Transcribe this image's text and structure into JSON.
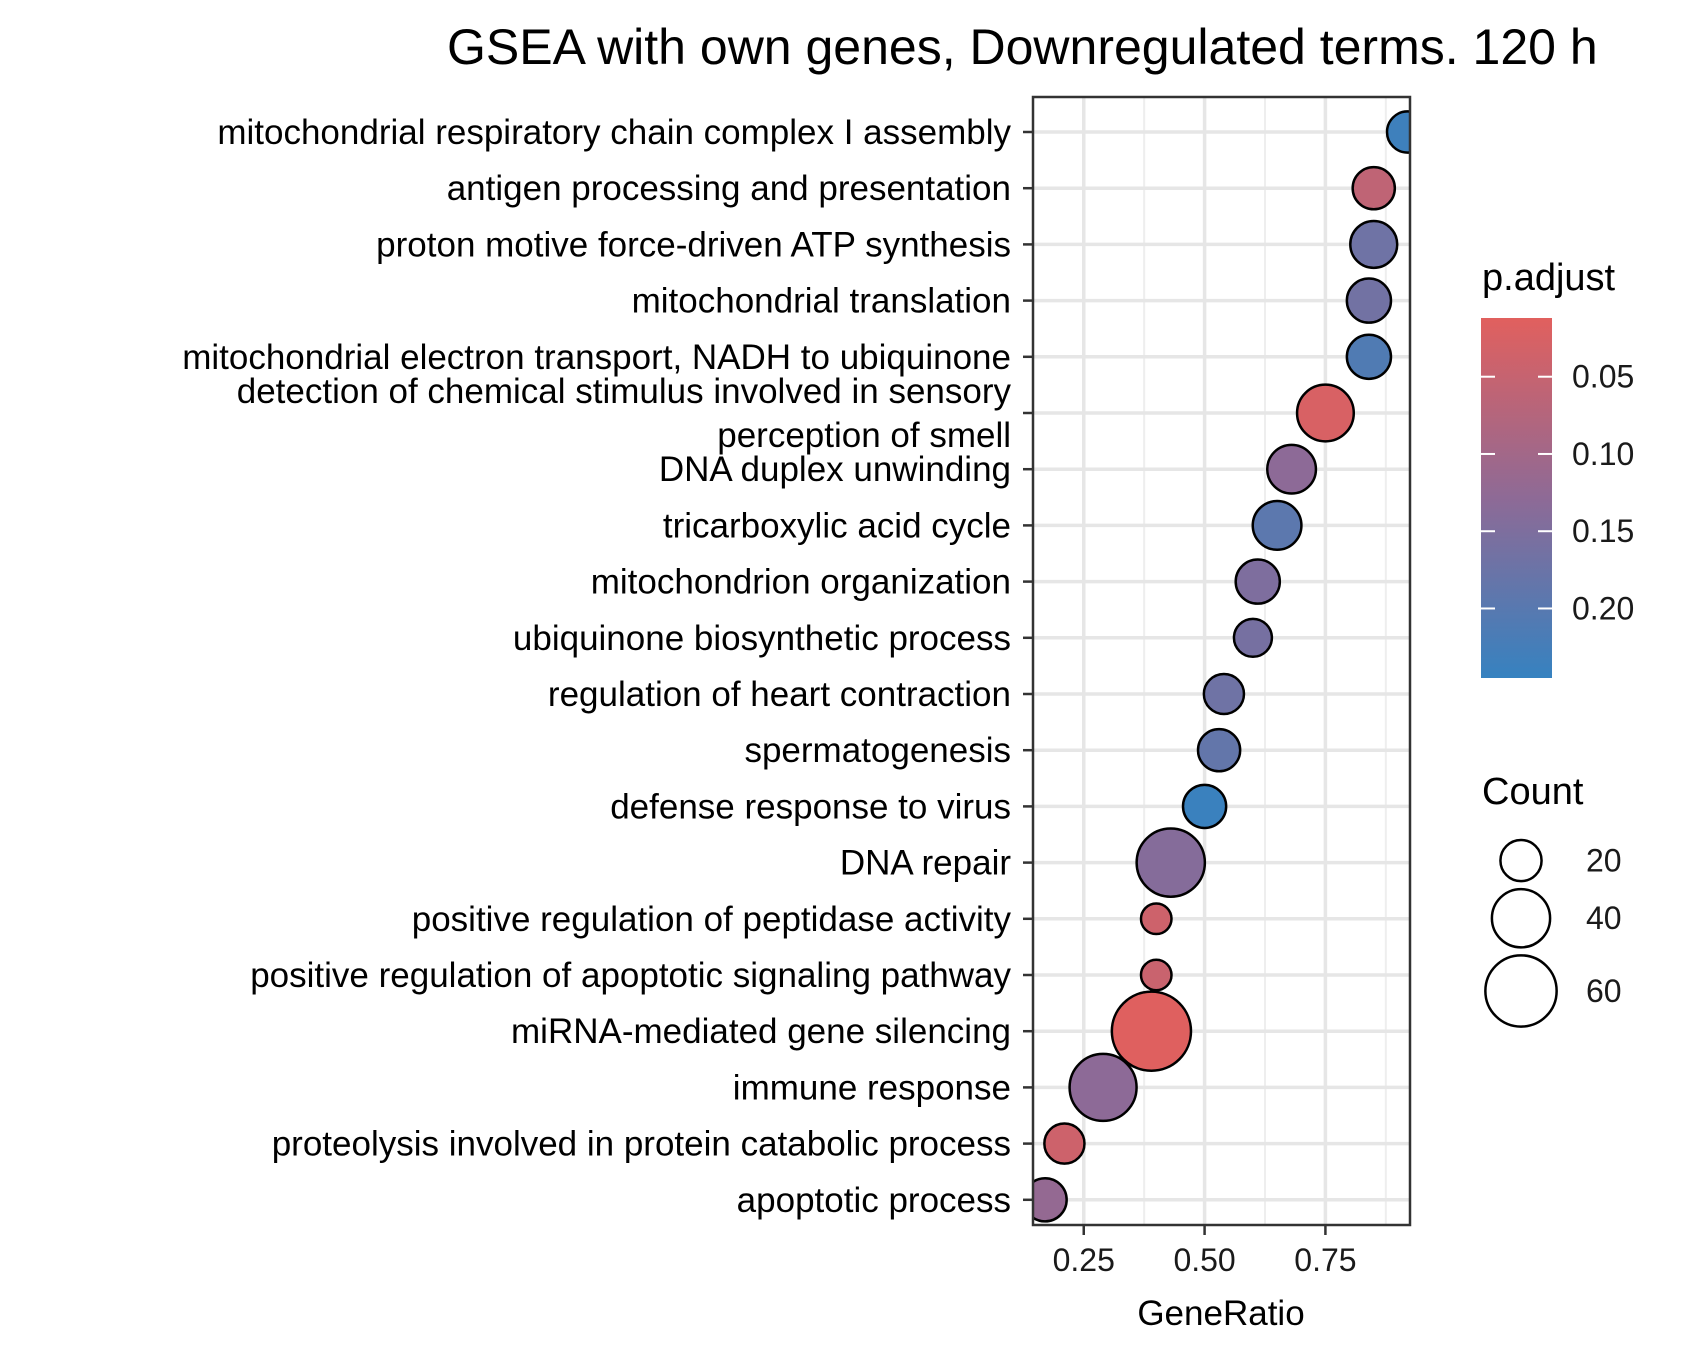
{
  "chart_data": {
    "type": "scatter",
    "title": "GSEA with own genes, Downregulated terms. 120 h",
    "xlabel": "GeneRatio",
    "ylabel": "",
    "xlim": [
      0.145,
      0.925
    ],
    "xticks": [
      0.25,
      0.5,
      0.75
    ],
    "xtick_labels": [
      "0.25",
      "0.50",
      "0.75"
    ],
    "grid": true,
    "legend_placement": "right",
    "color_scale": {
      "title": "p.adjust",
      "min_color": "#e1605e",
      "mid_color": "#8e6a96",
      "max_color": "#3682c0",
      "ticks": [
        0.05,
        0.1,
        0.15,
        0.2
      ],
      "tick_labels": [
        "0.05",
        "0.10",
        "0.15",
        "0.20"
      ],
      "range": [
        0.012,
        0.245
      ]
    },
    "size_scale": {
      "title": "Count",
      "ticks": [
        20,
        40,
        60
      ],
      "tick_labels": [
        "20",
        "40",
        "60"
      ]
    },
    "categories": [
      "mitochondrial respiratory chain complex I assembly",
      "antigen processing and presentation",
      "proton motive force-driven ATP synthesis",
      "mitochondrial translation",
      "mitochondrial electron transport, NADH to ubiquinone",
      "detection of chemical stimulus involved in sensory\nperception of smell",
      "DNA duplex unwinding",
      "tricarboxylic acid cycle",
      "mitochondrion organization",
      "ubiquinone biosynthetic process",
      "regulation of heart contraction",
      "spermatogenesis",
      "defense response to virus",
      "DNA repair",
      "positive regulation of peptidase activity",
      "positive regulation of apoptotic signaling pathway",
      "miRNA-mediated gene silencing",
      "immune response",
      "proteolysis involved in protein catabolic process",
      "apoptotic process"
    ],
    "points": [
      {
        "term": "mitochondrial respiratory chain complex I assembly",
        "GeneRatio": 0.92,
        "Count": 20,
        "p_adjust": 0.235
      },
      {
        "term": "antigen processing and presentation",
        "GeneRatio": 0.85,
        "Count": 21,
        "p_adjust": 0.06
      },
      {
        "term": "proton motive force-driven ATP synthesis",
        "GeneRatio": 0.85,
        "Count": 26,
        "p_adjust": 0.17
      },
      {
        "term": "mitochondrial translation",
        "GeneRatio": 0.84,
        "Count": 23,
        "p_adjust": 0.165
      },
      {
        "term": "mitochondrial electron transport, NADH to ubiquinone",
        "GeneRatio": 0.84,
        "Count": 23,
        "p_adjust": 0.21
      },
      {
        "term": "detection of chemical stimulus involved in sensory\nperception of smell",
        "GeneRatio": 0.75,
        "Count": 38,
        "p_adjust": 0.025
      },
      {
        "term": "DNA duplex unwinding",
        "GeneRatio": 0.68,
        "Count": 28,
        "p_adjust": 0.13
      },
      {
        "term": "tricarboxylic acid cycle",
        "GeneRatio": 0.65,
        "Count": 28,
        "p_adjust": 0.195
      },
      {
        "term": "mitochondrion organization",
        "GeneRatio": 0.61,
        "Count": 23,
        "p_adjust": 0.15
      },
      {
        "term": "ubiquinone biosynthetic process",
        "GeneRatio": 0.6,
        "Count": 17,
        "p_adjust": 0.16
      },
      {
        "term": "regulation of heart contraction",
        "GeneRatio": 0.54,
        "Count": 19,
        "p_adjust": 0.17
      },
      {
        "term": "spermatogenesis",
        "GeneRatio": 0.53,
        "Count": 21,
        "p_adjust": 0.185
      },
      {
        "term": "defense response to virus",
        "GeneRatio": 0.5,
        "Count": 22,
        "p_adjust": 0.24
      },
      {
        "term": "DNA repair",
        "GeneRatio": 0.43,
        "Count": 55,
        "p_adjust": 0.14
      },
      {
        "term": "positive regulation of peptidase activity",
        "GeneRatio": 0.4,
        "Count": 11,
        "p_adjust": 0.04
      },
      {
        "term": "positive regulation of apoptotic signaling pathway",
        "GeneRatio": 0.4,
        "Count": 11,
        "p_adjust": 0.045
      },
      {
        "term": "miRNA-mediated gene silencing",
        "GeneRatio": 0.39,
        "Count": 74,
        "p_adjust": 0.015
      },
      {
        "term": "immune response",
        "GeneRatio": 0.29,
        "Count": 53,
        "p_adjust": 0.13
      },
      {
        "term": "proteolysis involved in protein catabolic process",
        "GeneRatio": 0.21,
        "Count": 19,
        "p_adjust": 0.04
      },
      {
        "term": "apoptotic process",
        "GeneRatio": 0.17,
        "Count": 22,
        "p_adjust": 0.12
      }
    ]
  }
}
